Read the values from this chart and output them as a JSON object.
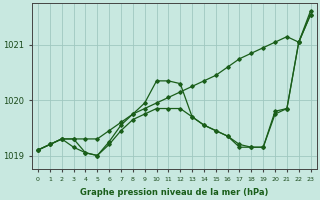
{
  "bg_color": "#c8e8e0",
  "grid_color": "#a0c8c0",
  "line_color": "#1a5e1a",
  "xlabel": "Graphe pression niveau de la mer (hPa)",
  "xlabel_color": "#1a5e1a",
  "xlim": [
    -0.5,
    23.5
  ],
  "ylim": [
    1018.75,
    1021.75
  ],
  "yticks": [
    1019,
    1020,
    1021
  ],
  "xticks": [
    0,
    1,
    2,
    3,
    4,
    5,
    6,
    7,
    8,
    9,
    10,
    11,
    12,
    13,
    14,
    15,
    16,
    17,
    18,
    19,
    20,
    21,
    22,
    23
  ],
  "series": {
    "sA": [
      1019.1,
      1019.2,
      1019.3,
      1019.3,
      1019.3,
      1019.3,
      1019.45,
      1019.6,
      1019.75,
      1019.85,
      1019.95,
      1020.05,
      1020.15,
      1020.25,
      1020.35,
      1020.45,
      1020.6,
      1020.75,
      1020.85,
      1020.95,
      1021.05,
      1021.15,
      1021.05,
      1021.62
    ],
    "sB": [
      1019.1,
      1019.2,
      1019.3,
      1019.3,
      1019.05,
      1019.0,
      1019.25,
      1019.55,
      1019.75,
      1019.95,
      1020.35,
      1020.35,
      1020.3,
      1019.7,
      1019.55,
      1019.45,
      1019.35,
      1019.2,
      1019.15,
      1019.15,
      1019.8,
      1019.85,
      1021.05,
      1021.55
    ],
    "sC": [
      1019.1,
      1019.2,
      1019.3,
      1019.15,
      1019.05,
      1019.0,
      1019.2,
      1019.45,
      1019.65,
      1019.75,
      1019.85,
      1019.85,
      1019.85,
      1019.7,
      1019.55,
      1019.45,
      1019.35,
      1019.15,
      1019.15,
      1019.15,
      1019.75,
      1019.85,
      1021.05,
      1021.55
    ]
  }
}
